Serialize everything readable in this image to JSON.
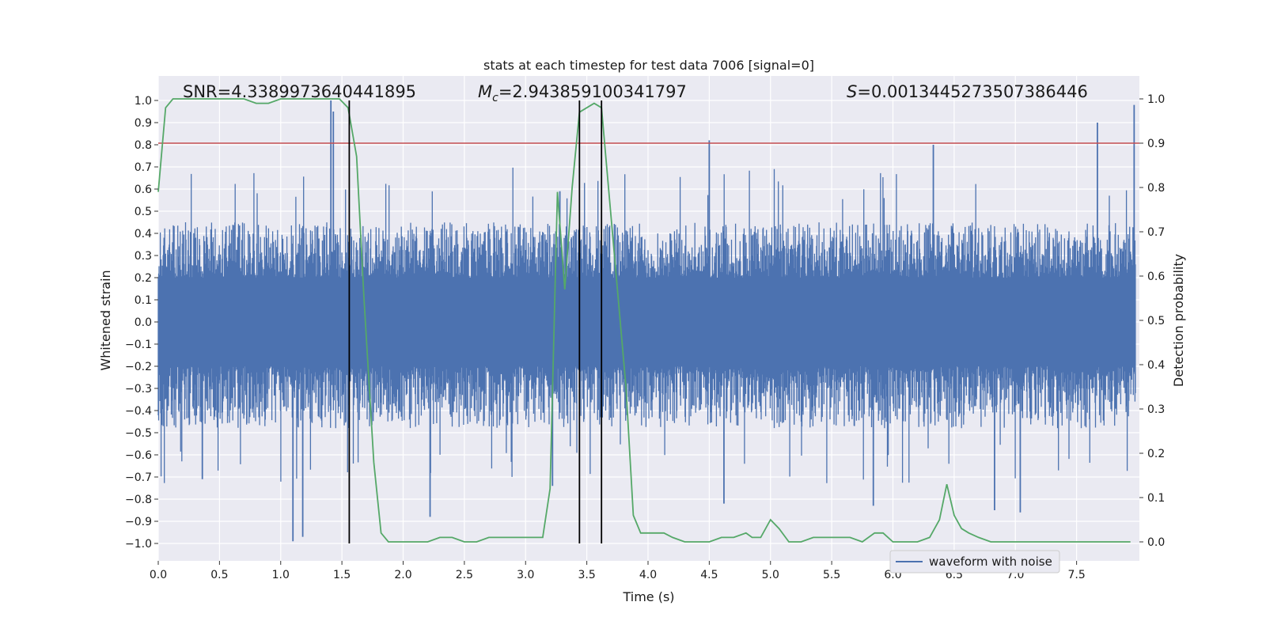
{
  "chart_data": {
    "type": "line",
    "title": "stats at each timestep for test data 7006 [signal=0]",
    "xlabel": "Time (s)",
    "ylabel_left": "Whitened strain",
    "ylabel_right": "Detection probability",
    "xlim": [
      0.0,
      8.0
    ],
    "ylim_left": [
      -1.1,
      1.1
    ],
    "ylim_right": [
      -0.05,
      1.05
    ],
    "x_ticks": [
      "0.0",
      "0.5",
      "1.0",
      "1.5",
      "2.0",
      "2.5",
      "3.0",
      "3.5",
      "4.0",
      "4.5",
      "5.0",
      "5.5",
      "6.0",
      "6.5",
      "7.0",
      "7.5"
    ],
    "y_ticks_left": [
      "1.0",
      "0.9",
      "0.8",
      "0.7",
      "0.6",
      "0.5",
      "0.4",
      "0.3",
      "0.2",
      "0.1",
      "0.0",
      "−0.1",
      "−0.2",
      "−0.3",
      "−0.4",
      "−0.5",
      "−0.6",
      "−0.7",
      "−0.8",
      "−0.9",
      "−1.0"
    ],
    "y_ticks_right": [
      "1.0",
      "0.9",
      "0.8",
      "0.7",
      "0.6",
      "0.5",
      "0.4",
      "0.3",
      "0.2",
      "0.1",
      "0.0"
    ],
    "grid": true,
    "legend_position": "lower-right",
    "annotations": {
      "snr": "SNR=4.338997364044189​5",
      "mc_symbol": "M",
      "mc_sub": "c",
      "mc_value": "=2.943859100341797",
      "s_symbol": "S",
      "s_value": "=0.0013445273507386446"
    },
    "threshold": {
      "y_right": 0.9,
      "color": "#c44e52"
    },
    "vertical_markers_x": [
      1.56,
      3.44,
      3.62
    ],
    "colors": {
      "strain": "#4c72b0",
      "probability": "#55a868",
      "threshold": "#c44e52",
      "marker": "#000000",
      "plot_bg": "#eaeaf2",
      "grid": "#ffffff"
    },
    "series": [
      {
        "name": "waveform with noise",
        "axis": "left",
        "style": "dense-noise",
        "base_amplitude": [
          -0.2,
          0.2
        ],
        "typical_peak": 0.45,
        "spikes": [
          {
            "x": 1.41,
            "y": 1.0
          },
          {
            "x": 1.43,
            "y": 0.95
          },
          {
            "x": 1.1,
            "y": -0.99
          },
          {
            "x": 1.18,
            "y": -0.97
          },
          {
            "x": 7.67,
            "y": 0.9
          },
          {
            "x": 7.97,
            "y": 0.98
          },
          {
            "x": 4.5,
            "y": 0.82
          },
          {
            "x": 6.33,
            "y": 0.8
          },
          {
            "x": 2.22,
            "y": -0.88
          },
          {
            "x": 6.83,
            "y": -0.85
          },
          {
            "x": 7.04,
            "y": -0.86
          },
          {
            "x": 5.84,
            "y": -0.83
          },
          {
            "x": 4.62,
            "y": -0.82
          },
          {
            "x": 0.36,
            "y": -0.71
          },
          {
            "x": 3.22,
            "y": -0.74
          },
          {
            "x": 3.28,
            "y": 0.59
          }
        ]
      },
      {
        "name": "",
        "axis": "right",
        "x": [
          0.0,
          0.06,
          0.12,
          0.2,
          0.3,
          0.4,
          0.5,
          0.6,
          0.7,
          0.8,
          0.9,
          1.0,
          1.1,
          1.2,
          1.3,
          1.4,
          1.48,
          1.55,
          1.62,
          1.68,
          1.76,
          1.82,
          1.88,
          2.0,
          2.1,
          2.2,
          2.3,
          2.4,
          2.5,
          2.6,
          2.7,
          2.8,
          2.9,
          3.0,
          3.07,
          3.14,
          3.2,
          3.26,
          3.32,
          3.38,
          3.44,
          3.5,
          3.56,
          3.62,
          3.68,
          3.75,
          3.82,
          3.88,
          3.94,
          4.0,
          4.06,
          4.13,
          4.2,
          4.3,
          4.4,
          4.5,
          4.6,
          4.7,
          4.8,
          4.85,
          4.92,
          5.0,
          5.07,
          5.15,
          5.25,
          5.35,
          5.45,
          5.55,
          5.65,
          5.75,
          5.85,
          5.92,
          6.0,
          6.1,
          6.2,
          6.3,
          6.38,
          6.44,
          6.5,
          6.56,
          6.62,
          6.7,
          6.8,
          6.9,
          7.0,
          7.2,
          7.4,
          7.6,
          7.8,
          7.94
        ],
        "values": [
          0.79,
          0.98,
          1.0,
          1.0,
          1.0,
          1.0,
          1.0,
          1.0,
          1.0,
          0.99,
          0.99,
          1.0,
          1.0,
          1.0,
          1.0,
          1.0,
          1.0,
          0.98,
          0.87,
          0.55,
          0.18,
          0.02,
          0.0,
          0.0,
          0.0,
          0.0,
          0.01,
          0.01,
          0.0,
          0.0,
          0.01,
          0.01,
          0.01,
          0.01,
          0.01,
          0.01,
          0.12,
          0.79,
          0.57,
          0.8,
          0.97,
          0.98,
          0.99,
          0.98,
          0.79,
          0.57,
          0.35,
          0.06,
          0.02,
          0.02,
          0.02,
          0.02,
          0.01,
          0.0,
          0.0,
          0.0,
          0.01,
          0.01,
          0.02,
          0.01,
          0.01,
          0.05,
          0.03,
          0.0,
          0.0,
          0.01,
          0.01,
          0.01,
          0.01,
          0.0,
          0.02,
          0.02,
          0.0,
          0.0,
          0.0,
          0.01,
          0.05,
          0.13,
          0.06,
          0.03,
          0.02,
          0.01,
          0.0,
          0.0,
          0.0,
          0.0,
          0.0,
          0.0,
          0.0,
          0.0
        ]
      }
    ]
  }
}
